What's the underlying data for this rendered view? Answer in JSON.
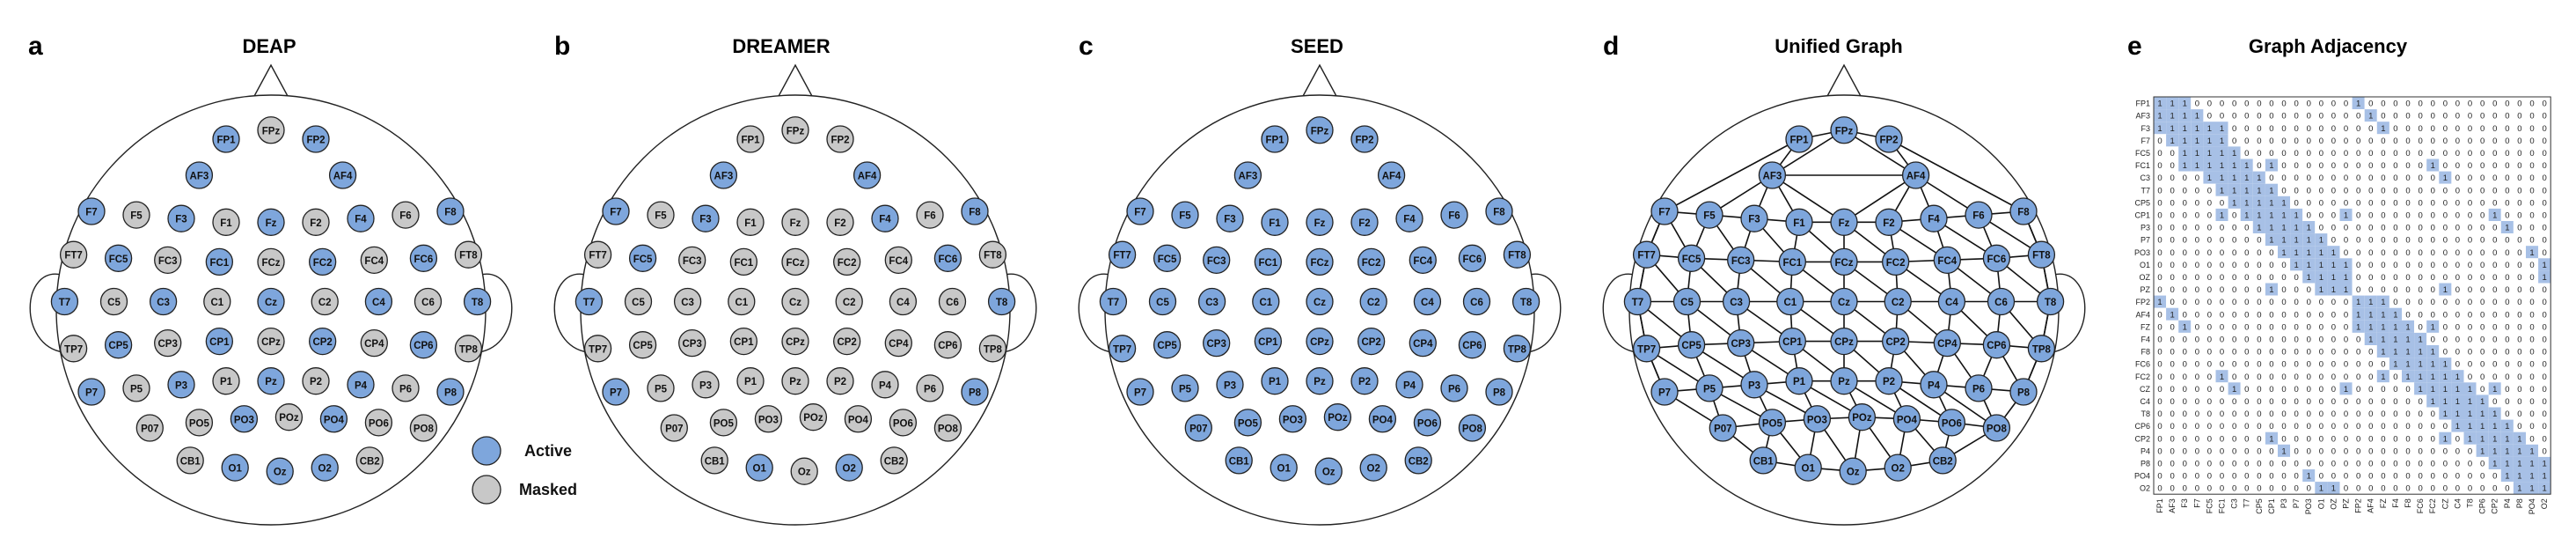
{
  "panels": [
    {
      "letter": "a",
      "title": "DEAP"
    },
    {
      "letter": "b",
      "title": "DREAMER"
    },
    {
      "letter": "c",
      "title": "SEED"
    },
    {
      "letter": "d",
      "title": "Unified Graph"
    },
    {
      "letter": "e",
      "title": "Graph Adjacency"
    }
  ],
  "legend": {
    "active": "Active",
    "masked": "Masked"
  },
  "colors": {
    "active": "#7ea6dc",
    "masked": "#c8c8c8",
    "grid_fill": "#a7c0e6",
    "stroke": "#222222"
  },
  "electrodes": [
    {
      "label": "FP1",
      "r": 0,
      "c": 3
    },
    {
      "label": "FPz",
      "r": -0.25,
      "c": 4
    },
    {
      "label": "FP2",
      "r": 0,
      "c": 5
    },
    {
      "label": "AF3",
      "r": 1,
      "c": 2.4
    },
    {
      "label": "AF4",
      "r": 1,
      "c": 5.6
    },
    {
      "label": "F7",
      "r": 2,
      "c": 0
    },
    {
      "label": "F5",
      "r": 2.1,
      "c": 1
    },
    {
      "label": "F3",
      "r": 2.2,
      "c": 2
    },
    {
      "label": "F1",
      "r": 2.3,
      "c": 3
    },
    {
      "label": "Fz",
      "r": 2.3,
      "c": 4
    },
    {
      "label": "F2",
      "r": 2.3,
      "c": 5
    },
    {
      "label": "F4",
      "r": 2.2,
      "c": 6
    },
    {
      "label": "F6",
      "r": 2.1,
      "c": 7
    },
    {
      "label": "F8",
      "r": 2,
      "c": 8
    },
    {
      "label": "FT7",
      "r": 3.2,
      "c": -0.4
    },
    {
      "label": "FC5",
      "r": 3.3,
      "c": 0.6
    },
    {
      "label": "FC3",
      "r": 3.35,
      "c": 1.7
    },
    {
      "label": "FC1",
      "r": 3.4,
      "c": 2.85
    },
    {
      "label": "FCz",
      "r": 3.4,
      "c": 4
    },
    {
      "label": "FC2",
      "r": 3.4,
      "c": 5.15
    },
    {
      "label": "FC4",
      "r": 3.35,
      "c": 6.3
    },
    {
      "label": "FC6",
      "r": 3.3,
      "c": 7.4
    },
    {
      "label": "FT8",
      "r": 3.2,
      "c": 8.4
    },
    {
      "label": "T7",
      "r": 4.5,
      "c": -0.6
    },
    {
      "label": "C5",
      "r": 4.5,
      "c": 0.5
    },
    {
      "label": "C3",
      "r": 4.5,
      "c": 1.6
    },
    {
      "label": "C1",
      "r": 4.5,
      "c": 2.8
    },
    {
      "label": "Cz",
      "r": 4.5,
      "c": 4
    },
    {
      "label": "C2",
      "r": 4.5,
      "c": 5.2
    },
    {
      "label": "C4",
      "r": 4.5,
      "c": 6.4
    },
    {
      "label": "C6",
      "r": 4.5,
      "c": 7.5
    },
    {
      "label": "T8",
      "r": 4.5,
      "c": 8.6
    },
    {
      "label": "TP7",
      "r": 5.8,
      "c": -0.4
    },
    {
      "label": "CP5",
      "r": 5.7,
      "c": 0.6
    },
    {
      "label": "CP3",
      "r": 5.65,
      "c": 1.7
    },
    {
      "label": "CP1",
      "r": 5.6,
      "c": 2.85
    },
    {
      "label": "CPz",
      "r": 5.6,
      "c": 4
    },
    {
      "label": "CP2",
      "r": 5.6,
      "c": 5.15
    },
    {
      "label": "CP4",
      "r": 5.65,
      "c": 6.3
    },
    {
      "label": "CP6",
      "r": 5.7,
      "c": 7.4
    },
    {
      "label": "TP8",
      "r": 5.8,
      "c": 8.4
    },
    {
      "label": "P7",
      "r": 7,
      "c": 0
    },
    {
      "label": "P5",
      "r": 6.9,
      "c": 1
    },
    {
      "label": "P3",
      "r": 6.8,
      "c": 2
    },
    {
      "label": "P1",
      "r": 6.7,
      "c": 3
    },
    {
      "label": "Pz",
      "r": 6.7,
      "c": 4
    },
    {
      "label": "P2",
      "r": 6.7,
      "c": 5
    },
    {
      "label": "P4",
      "r": 6.8,
      "c": 6
    },
    {
      "label": "P6",
      "r": 6.9,
      "c": 7
    },
    {
      "label": "P8",
      "r": 7,
      "c": 8
    },
    {
      "label": "P07",
      "r": 8,
      "c": 1.3
    },
    {
      "label": "PO5",
      "r": 7.85,
      "c": 2.4
    },
    {
      "label": "PO3",
      "r": 7.75,
      "c": 3.4
    },
    {
      "label": "POz",
      "r": 7.7,
      "c": 4.4
    },
    {
      "label": "PO4",
      "r": 7.75,
      "c": 5.4
    },
    {
      "label": "PO6",
      "r": 7.85,
      "c": 6.4
    },
    {
      "label": "PO8",
      "r": 8,
      "c": 7.4
    },
    {
      "label": "CB1",
      "r": 8.9,
      "c": 2.2
    },
    {
      "label": "O1",
      "r": 9.1,
      "c": 3.2
    },
    {
      "label": "Oz",
      "r": 9.2,
      "c": 4.2
    },
    {
      "label": "O2",
      "r": 9.1,
      "c": 5.2
    },
    {
      "label": "CB2",
      "r": 8.9,
      "c": 6.2
    }
  ],
  "active_sets": {
    "DEAP": [
      "FP1",
      "FP2",
      "AF3",
      "AF4",
      "F7",
      "F3",
      "Fz",
      "F4",
      "F8",
      "FC5",
      "FC1",
      "FC2",
      "FC6",
      "T7",
      "C3",
      "Cz",
      "C4",
      "T8",
      "CP5",
      "CP1",
      "CP2",
      "CP6",
      "P7",
      "P3",
      "Pz",
      "P4",
      "P8",
      "PO3",
      "PO4",
      "O1",
      "Oz",
      "O2"
    ],
    "DREAMER": [
      "AF3",
      "AF4",
      "F7",
      "F3",
      "F4",
      "F8",
      "FC5",
      "FC6",
      "T7",
      "T8",
      "P7",
      "P8",
      "O1",
      "O2"
    ],
    "SEED": "all",
    "Unified Graph": "all"
  },
  "adjacency": {
    "row_labels": [
      "FP1",
      "AF3",
      "F3",
      "F7",
      "FC5",
      "FC1",
      "C3",
      "T7",
      "CP5",
      "CP1",
      "P3",
      "P7",
      "PO3",
      "O1",
      "OZ",
      "PZ",
      "FP2",
      "AF4",
      "FZ",
      "F4",
      "F8",
      "FC6",
      "FC2",
      "CZ",
      "C4",
      "T8",
      "CP6",
      "CP2",
      "P4",
      "P8",
      "PO4",
      "O2"
    ],
    "col_labels": [
      "FP1",
      "AF3",
      "F3",
      "F7",
      "FC5",
      "FC1",
      "C3",
      "T7",
      "CP5",
      "CP1",
      "P3",
      "P7",
      "PO3",
      "O1",
      "OZ",
      "PZ",
      "FP2",
      "AF4",
      "FZ",
      "F4",
      "F8",
      "FC6",
      "FC2",
      "CZ",
      "C4",
      "T8",
      "CP6",
      "CP2",
      "P4",
      "P8",
      "PO4",
      "O2"
    ],
    "value_on": "1",
    "value_off": "0"
  }
}
